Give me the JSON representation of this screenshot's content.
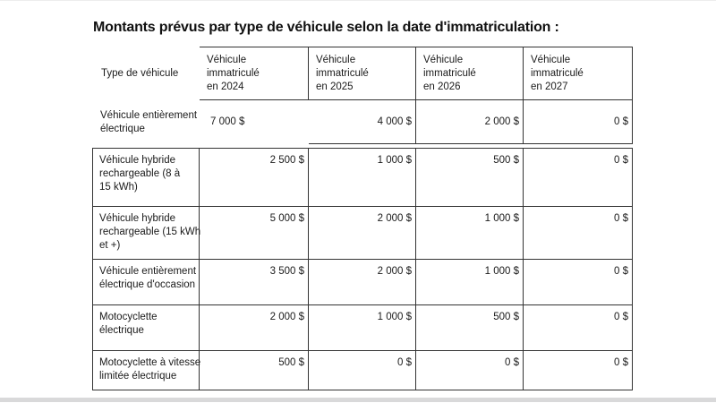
{
  "title": "Montants prévus par type de véhicule selon la date d'immatriculation :",
  "table": {
    "corner_header": "Type de véhicule",
    "column_headers": [
      "Véhicule\nimmatriculé\nen 2024",
      "Véhicule\nimmatriculé\nen 2025",
      "Véhicule\nimmatriculé\nen 2026",
      "Véhicule\nimmatriculé\nen 2027"
    ],
    "rows": [
      {
        "label": "Véhicule entièrement\nélectrique",
        "values": [
          "7 000 $",
          "4 000 $",
          "2 000 $",
          "0 $"
        ]
      },
      {
        "label": "Véhicule hybride\nrechargeable (8 à\n15 kWh)",
        "values": [
          "2 500 $",
          "1 000 $",
          "500 $",
          "0 $"
        ]
      },
      {
        "label": "Véhicule hybride\nrechargeable (15 kWh\net +)",
        "values": [
          "5 000 $",
          "2 000 $",
          "1 000 $",
          "0 $"
        ]
      },
      {
        "label": "Véhicule entièrement\nélectrique d'occasion",
        "values": [
          "3 500 $",
          "2 000 $",
          "1 000 $",
          "0 $"
        ]
      },
      {
        "label": "Motocyclette\nélectrique",
        "values": [
          "2 000 $",
          "1 000 $",
          "500 $",
          "0 $"
        ]
      },
      {
        "label": "Motocyclette à vitesse\nlimitée électrique",
        "values": [
          "500 $",
          "0 $",
          "0 $",
          "0 $"
        ]
      }
    ]
  },
  "colors": {
    "border": "#333333",
    "text": "#1a1a1a",
    "title_text": "#111111",
    "bottom_bar": "#d9d9da"
  }
}
